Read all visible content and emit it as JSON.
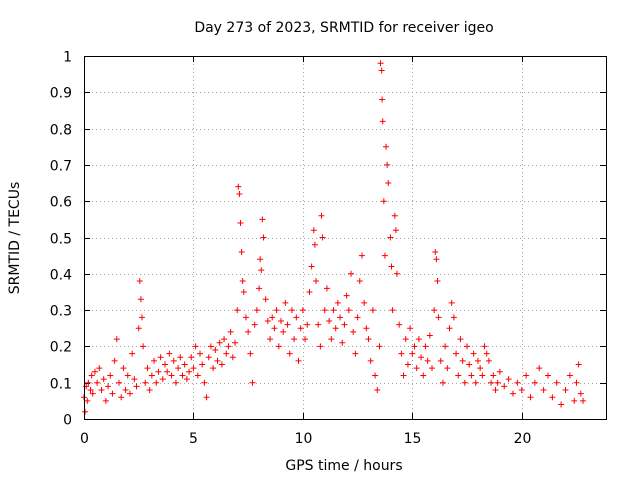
{
  "chart_data": {
    "type": "scatter",
    "title": "Day 273 of 2023, SRMTID for receiver igeo",
    "xlabel": "GPS time / hours",
    "ylabel": "SRMTID / TECUs",
    "xlim": [
      0,
      23.85
    ],
    "ylim": [
      0,
      1
    ],
    "xticks": [
      0,
      5,
      10,
      15,
      20
    ],
    "xtick_labels": [
      "0",
      "5",
      "10",
      "15",
      "20"
    ],
    "yticks": [
      0,
      0.1,
      0.2,
      0.3,
      0.4,
      0.5,
      0.6,
      0.7,
      0.8,
      0.9,
      1
    ],
    "ytick_labels": [
      "0",
      "0.1",
      "0.2",
      "0.3",
      "0.4",
      "0.5",
      "0.6",
      "0.7",
      "0.8",
      "0.9",
      "1"
    ],
    "grid": true,
    "marker": "+",
    "color": "#ff0000",
    "series": [
      {
        "name": "SRMTID",
        "points": [
          [
            0.0,
            0.06
          ],
          [
            0.05,
            0.02
          ],
          [
            0.1,
            0.09
          ],
          [
            0.15,
            0.05
          ],
          [
            0.2,
            0.1
          ],
          [
            0.3,
            0.08
          ],
          [
            0.35,
            0.12
          ],
          [
            0.4,
            0.07
          ],
          [
            0.5,
            0.13
          ],
          [
            0.6,
            0.1
          ],
          [
            0.7,
            0.14
          ],
          [
            0.8,
            0.08
          ],
          [
            0.9,
            0.11
          ],
          [
            1.0,
            0.05
          ],
          [
            1.1,
            0.09
          ],
          [
            1.2,
            0.12
          ],
          [
            1.3,
            0.07
          ],
          [
            1.4,
            0.16
          ],
          [
            1.5,
            0.22
          ],
          [
            1.6,
            0.1
          ],
          [
            1.7,
            0.06
          ],
          [
            1.8,
            0.14
          ],
          [
            1.9,
            0.08
          ],
          [
            2.0,
            0.12
          ],
          [
            2.1,
            0.07
          ],
          [
            2.2,
            0.18
          ],
          [
            2.3,
            0.11
          ],
          [
            2.4,
            0.09
          ],
          [
            2.5,
            0.25
          ],
          [
            2.55,
            0.38
          ],
          [
            2.6,
            0.33
          ],
          [
            2.65,
            0.28
          ],
          [
            2.7,
            0.2
          ],
          [
            2.8,
            0.1
          ],
          [
            2.9,
            0.14
          ],
          [
            3.0,
            0.08
          ],
          [
            3.1,
            0.12
          ],
          [
            3.2,
            0.16
          ],
          [
            3.3,
            0.1
          ],
          [
            3.4,
            0.13
          ],
          [
            3.5,
            0.17
          ],
          [
            3.6,
            0.11
          ],
          [
            3.7,
            0.15
          ],
          [
            3.8,
            0.13
          ],
          [
            3.9,
            0.18
          ],
          [
            4.0,
            0.12
          ],
          [
            4.1,
            0.16
          ],
          [
            4.2,
            0.1
          ],
          [
            4.3,
            0.14
          ],
          [
            4.4,
            0.17
          ],
          [
            4.5,
            0.12
          ],
          [
            4.6,
            0.15
          ],
          [
            4.7,
            0.11
          ],
          [
            4.8,
            0.13
          ],
          [
            4.9,
            0.17
          ],
          [
            5.0,
            0.14
          ],
          [
            5.1,
            0.2
          ],
          [
            5.2,
            0.12
          ],
          [
            5.3,
            0.18
          ],
          [
            5.4,
            0.15
          ],
          [
            5.5,
            0.1
          ],
          [
            5.6,
            0.06
          ],
          [
            5.7,
            0.17
          ],
          [
            5.8,
            0.2
          ],
          [
            5.9,
            0.14
          ],
          [
            6.0,
            0.19
          ],
          [
            6.1,
            0.16
          ],
          [
            6.2,
            0.21
          ],
          [
            6.3,
            0.15
          ],
          [
            6.4,
            0.22
          ],
          [
            6.5,
            0.18
          ],
          [
            6.6,
            0.2
          ],
          [
            6.7,
            0.24
          ],
          [
            6.8,
            0.17
          ],
          [
            6.9,
            0.21
          ],
          [
            7.0,
            0.3
          ],
          [
            7.05,
            0.64
          ],
          [
            7.1,
            0.62
          ],
          [
            7.15,
            0.54
          ],
          [
            7.2,
            0.46
          ],
          [
            7.25,
            0.38
          ],
          [
            7.3,
            0.35
          ],
          [
            7.4,
            0.28
          ],
          [
            7.5,
            0.24
          ],
          [
            7.6,
            0.18
          ],
          [
            7.7,
            0.1
          ],
          [
            7.8,
            0.26
          ],
          [
            7.9,
            0.3
          ],
          [
            8.0,
            0.36
          ],
          [
            8.05,
            0.44
          ],
          [
            8.1,
            0.41
          ],
          [
            8.15,
            0.55
          ],
          [
            8.2,
            0.5
          ],
          [
            8.3,
            0.33
          ],
          [
            8.4,
            0.27
          ],
          [
            8.5,
            0.22
          ],
          [
            8.6,
            0.28
          ],
          [
            8.7,
            0.25
          ],
          [
            8.8,
            0.3
          ],
          [
            8.9,
            0.2
          ],
          [
            9.0,
            0.27
          ],
          [
            9.1,
            0.24
          ],
          [
            9.2,
            0.32
          ],
          [
            9.3,
            0.26
          ],
          [
            9.4,
            0.18
          ],
          [
            9.5,
            0.3
          ],
          [
            9.6,
            0.22
          ],
          [
            9.7,
            0.28
          ],
          [
            9.8,
            0.16
          ],
          [
            9.9,
            0.25
          ],
          [
            10.0,
            0.3
          ],
          [
            10.1,
            0.22
          ],
          [
            10.2,
            0.26
          ],
          [
            10.3,
            0.35
          ],
          [
            10.4,
            0.42
          ],
          [
            10.5,
            0.52
          ],
          [
            10.55,
            0.48
          ],
          [
            10.6,
            0.38
          ],
          [
            10.7,
            0.26
          ],
          [
            10.8,
            0.2
          ],
          [
            10.85,
            0.56
          ],
          [
            10.9,
            0.5
          ],
          [
            11.0,
            0.3
          ],
          [
            11.1,
            0.36
          ],
          [
            11.2,
            0.27
          ],
          [
            11.3,
            0.22
          ],
          [
            11.4,
            0.3
          ],
          [
            11.5,
            0.25
          ],
          [
            11.6,
            0.32
          ],
          [
            11.7,
            0.28
          ],
          [
            11.8,
            0.21
          ],
          [
            11.9,
            0.26
          ],
          [
            12.0,
            0.34
          ],
          [
            12.1,
            0.3
          ],
          [
            12.2,
            0.4
          ],
          [
            12.3,
            0.24
          ],
          [
            12.4,
            0.18
          ],
          [
            12.5,
            0.28
          ],
          [
            12.6,
            0.38
          ],
          [
            12.7,
            0.45
          ],
          [
            12.8,
            0.32
          ],
          [
            12.9,
            0.25
          ],
          [
            13.0,
            0.22
          ],
          [
            13.1,
            0.16
          ],
          [
            13.2,
            0.3
          ],
          [
            13.3,
            0.12
          ],
          [
            13.4,
            0.08
          ],
          [
            13.5,
            0.2
          ],
          [
            13.55,
            0.98
          ],
          [
            13.6,
            0.96
          ],
          [
            13.62,
            0.88
          ],
          [
            13.65,
            0.82
          ],
          [
            13.7,
            0.6
          ],
          [
            13.75,
            0.45
          ],
          [
            13.8,
            0.75
          ],
          [
            13.85,
            0.7
          ],
          [
            13.9,
            0.65
          ],
          [
            14.0,
            0.5
          ],
          [
            14.05,
            0.42
          ],
          [
            14.1,
            0.3
          ],
          [
            14.2,
            0.56
          ],
          [
            14.25,
            0.52
          ],
          [
            14.3,
            0.4
          ],
          [
            14.4,
            0.26
          ],
          [
            14.5,
            0.18
          ],
          [
            14.6,
            0.12
          ],
          [
            14.7,
            0.22
          ],
          [
            14.8,
            0.15
          ],
          [
            14.9,
            0.25
          ],
          [
            15.0,
            0.18
          ],
          [
            15.1,
            0.2
          ],
          [
            15.2,
            0.14
          ],
          [
            15.3,
            0.22
          ],
          [
            15.4,
            0.17
          ],
          [
            15.5,
            0.12
          ],
          [
            15.6,
            0.2
          ],
          [
            15.7,
            0.16
          ],
          [
            15.8,
            0.23
          ],
          [
            15.9,
            0.14
          ],
          [
            16.0,
            0.3
          ],
          [
            16.05,
            0.46
          ],
          [
            16.1,
            0.44
          ],
          [
            16.15,
            0.38
          ],
          [
            16.2,
            0.28
          ],
          [
            16.3,
            0.16
          ],
          [
            16.4,
            0.1
          ],
          [
            16.5,
            0.2
          ],
          [
            16.6,
            0.14
          ],
          [
            16.7,
            0.25
          ],
          [
            16.8,
            0.32
          ],
          [
            16.9,
            0.28
          ],
          [
            17.0,
            0.18
          ],
          [
            17.1,
            0.12
          ],
          [
            17.2,
            0.22
          ],
          [
            17.3,
            0.16
          ],
          [
            17.4,
            0.1
          ],
          [
            17.5,
            0.2
          ],
          [
            17.6,
            0.15
          ],
          [
            17.7,
            0.12
          ],
          [
            17.8,
            0.18
          ],
          [
            17.9,
            0.1
          ],
          [
            18.0,
            0.16
          ],
          [
            18.1,
            0.14
          ],
          [
            18.2,
            0.12
          ],
          [
            18.3,
            0.2
          ],
          [
            18.4,
            0.18
          ],
          [
            18.5,
            0.16
          ],
          [
            18.6,
            0.1
          ],
          [
            18.7,
            0.12
          ],
          [
            18.8,
            0.08
          ],
          [
            18.9,
            0.1
          ],
          [
            19.0,
            0.13
          ],
          [
            19.2,
            0.09
          ],
          [
            19.4,
            0.11
          ],
          [
            19.6,
            0.07
          ],
          [
            19.8,
            0.1
          ],
          [
            20.0,
            0.08
          ],
          [
            20.2,
            0.12
          ],
          [
            20.4,
            0.06
          ],
          [
            20.6,
            0.1
          ],
          [
            20.8,
            0.14
          ],
          [
            21.0,
            0.08
          ],
          [
            21.2,
            0.12
          ],
          [
            21.4,
            0.06
          ],
          [
            21.6,
            0.1
          ],
          [
            21.8,
            0.04
          ],
          [
            22.0,
            0.08
          ],
          [
            22.2,
            0.12
          ],
          [
            22.4,
            0.05
          ],
          [
            22.5,
            0.1
          ],
          [
            22.6,
            0.15
          ],
          [
            22.7,
            0.07
          ],
          [
            22.8,
            0.05
          ]
        ]
      }
    ]
  }
}
